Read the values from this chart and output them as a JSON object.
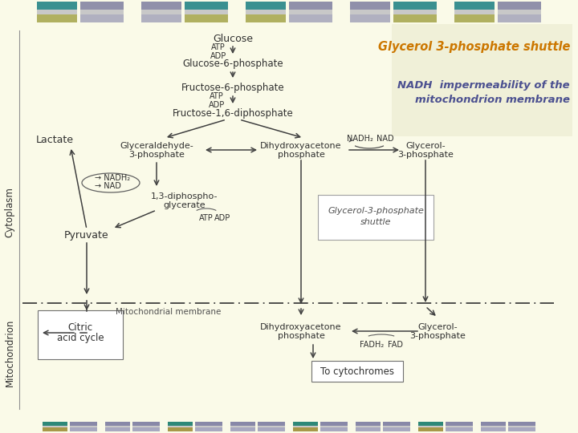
{
  "bg_color": "#FAFAE8",
  "title1": "Glycerol 3-phosphate shuttle",
  "title1_color": "#CC7700",
  "title2": "NADH  impermeability of the\nmitochondrion membrane",
  "title2_color": "#4B5090",
  "cytoplasm_label": "Cytoplasm",
  "mitochondrion_label": "Mitochondrion",
  "membrane_label": "Mitochondrial membrane",
  "arrow_color": "#404040",
  "text_color": "#303030",
  "top_strip": [
    {
      "left_color": "#3A9090",
      "right_color": "#A8A870"
    },
    {
      "left_color": "#8888AA",
      "right_color": "#A8A8B8"
    },
    {
      "left_color": "#3A9090",
      "right_color": "#A8A870"
    },
    {
      "left_color": "#8888AA",
      "right_color": "#A8A8B8"
    },
    {
      "left_color": "#3A9090",
      "right_color": "#A8A870"
    }
  ],
  "bot_strip": [
    {
      "left_color": "#3A9090",
      "right_color": "#A8A870"
    },
    {
      "left_color": "#8888AA",
      "right_color": "#A8A8B8"
    },
    {
      "left_color": "#3A9090",
      "right_color": "#A8A870"
    },
    {
      "left_color": "#8888AA",
      "right_color": "#A8A8B8"
    },
    {
      "left_color": "#3A9090",
      "right_color": "#A8A870"
    },
    {
      "left_color": "#8888AA",
      "right_color": "#A8A8B8"
    },
    {
      "left_color": "#3A9090",
      "right_color": "#A8A870"
    },
    {
      "left_color": "#8888AA",
      "right_color": "#A8A8B8"
    }
  ]
}
